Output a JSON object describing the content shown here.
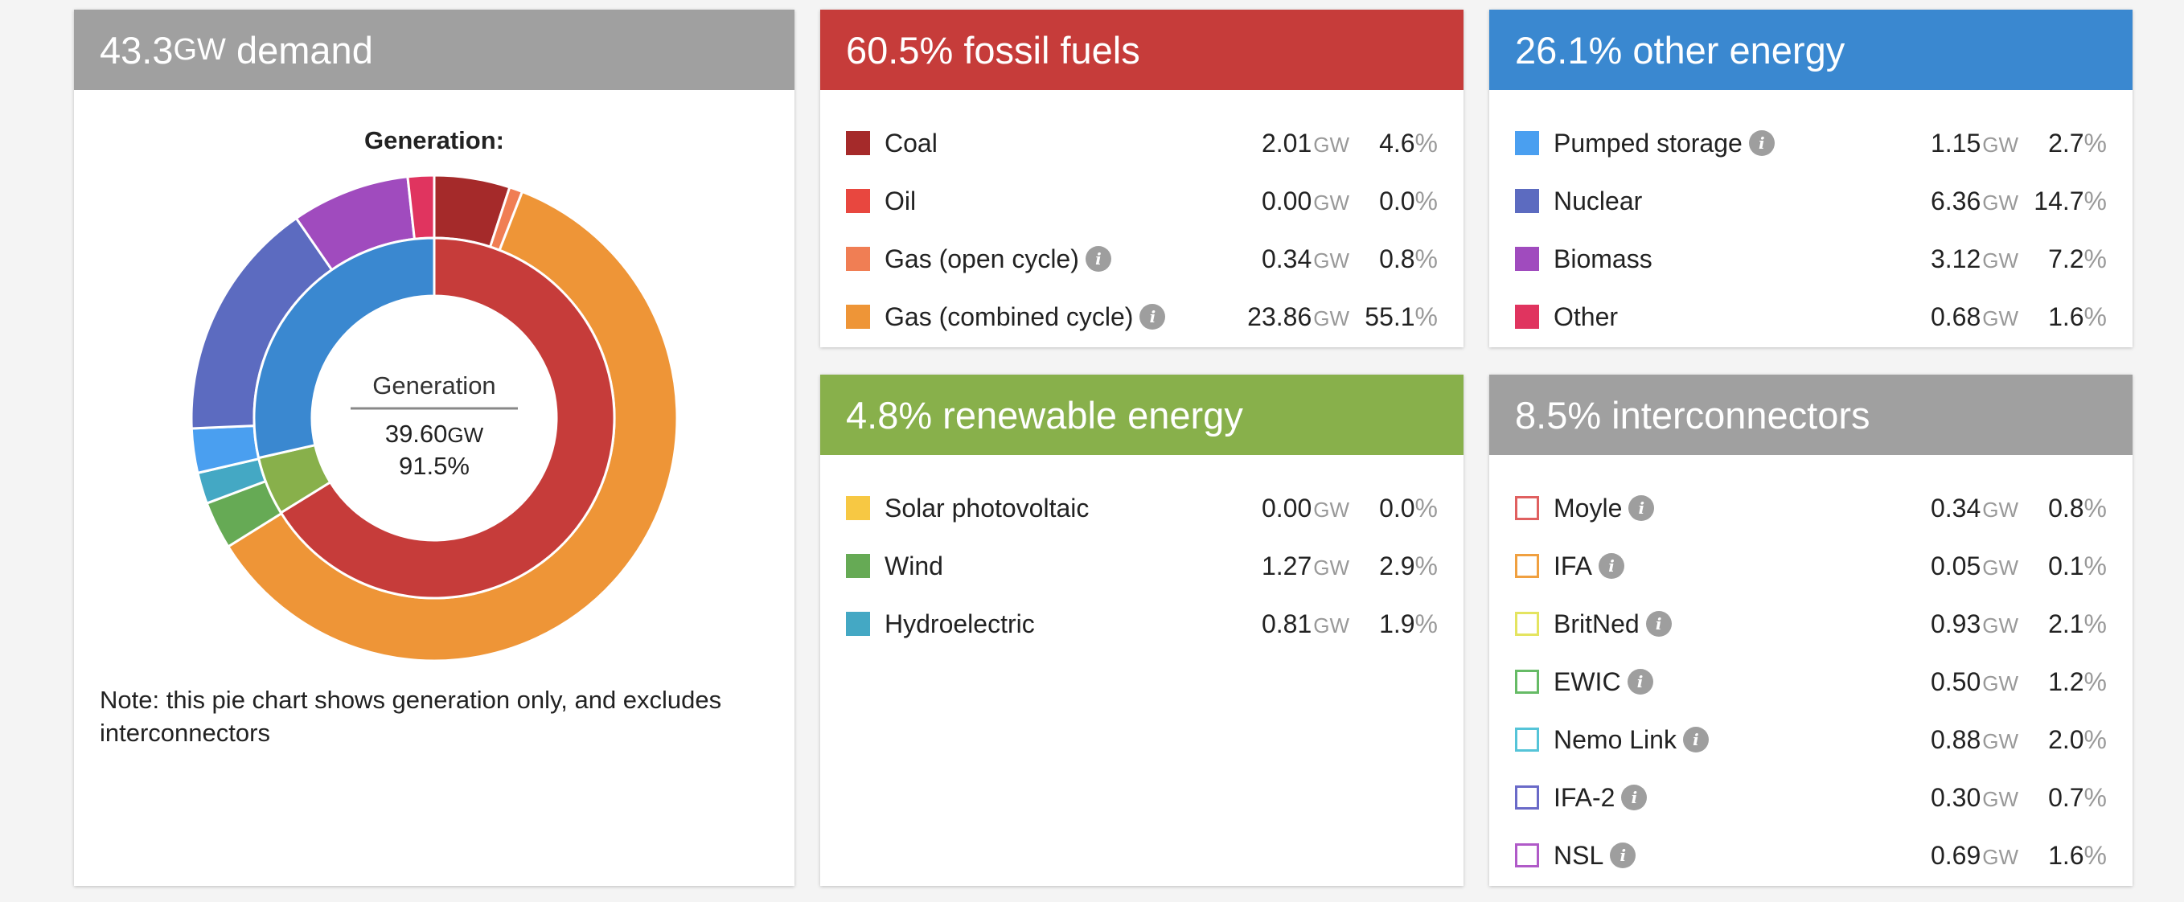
{
  "demand_card": {
    "value": "43.3",
    "unit": "GW",
    "label": "demand",
    "chart_title": "Generation:",
    "center_label": "Generation",
    "center_value": "39.60",
    "center_unit": "GW",
    "center_pct": "91.5%",
    "note": "Note: this pie chart shows generation only, and excludes interconnectors"
  },
  "cards": {
    "fossil": {
      "title": "60.5% fossil fuels",
      "color": "#c63c3a",
      "items": [
        {
          "name": "Coal",
          "value": "2.01",
          "unit": "GW",
          "pct": "4.6",
          "color": "#a52a2a",
          "info": false
        },
        {
          "name": "Oil",
          "value": "0.00",
          "unit": "GW",
          "pct": "0.0",
          "color": "#e8473f",
          "info": false
        },
        {
          "name": "Gas (open cycle)",
          "value": "0.34",
          "unit": "GW",
          "pct": "0.8",
          "color": "#f07e54",
          "info": true
        },
        {
          "name": "Gas (combined cycle)",
          "value": "23.86",
          "unit": "GW",
          "pct": "55.1",
          "color": "#ee9537",
          "info": true
        }
      ]
    },
    "other": {
      "title": "26.1% other energy",
      "color": "#3a88d0",
      "items": [
        {
          "name": "Pumped storage",
          "value": "1.15",
          "unit": "GW",
          "pct": "2.7",
          "color": "#4a9ff0",
          "info": true
        },
        {
          "name": "Nuclear",
          "value": "6.36",
          "unit": "GW",
          "pct": "14.7",
          "color": "#5c6bc0",
          "info": false
        },
        {
          "name": "Biomass",
          "value": "3.12",
          "unit": "GW",
          "pct": "7.2",
          "color": "#a04bbe",
          "info": false
        },
        {
          "name": "Other",
          "value": "0.68",
          "unit": "GW",
          "pct": "1.6",
          "color": "#e0345f",
          "info": false
        }
      ]
    },
    "renewable": {
      "title": "4.8% renewable energy",
      "color": "#88b04b",
      "items": [
        {
          "name": "Solar photovoltaic",
          "value": "0.00",
          "unit": "GW",
          "pct": "0.0",
          "color": "#f7c843",
          "info": false
        },
        {
          "name": "Wind",
          "value": "1.27",
          "unit": "GW",
          "pct": "2.9",
          "color": "#66aa55",
          "info": false
        },
        {
          "name": "Hydroelectric",
          "value": "0.81",
          "unit": "GW",
          "pct": "1.9",
          "color": "#44a8c4",
          "info": false
        }
      ]
    },
    "interconnectors": {
      "title": "8.5% interconnectors",
      "color": "#a0a0a0",
      "items": [
        {
          "name": "Moyle",
          "value": "0.34",
          "unit": "GW",
          "pct": "0.8",
          "color": "#e06060",
          "info": true
        },
        {
          "name": "IFA",
          "value": "0.05",
          "unit": "GW",
          "pct": "0.1",
          "color": "#f0a040",
          "info": true
        },
        {
          "name": "BritNed",
          "value": "0.93",
          "unit": "GW",
          "pct": "2.1",
          "color": "#e4e460",
          "info": true
        },
        {
          "name": "EWIC",
          "value": "0.50",
          "unit": "GW",
          "pct": "1.2",
          "color": "#66bb66",
          "info": true
        },
        {
          "name": "Nemo Link",
          "value": "0.88",
          "unit": "GW",
          "pct": "2.0",
          "color": "#55c4d8",
          "info": true
        },
        {
          "name": "IFA-2",
          "value": "0.30",
          "unit": "GW",
          "pct": "0.7",
          "color": "#6a6ac8",
          "info": true
        },
        {
          "name": "NSL",
          "value": "0.69",
          "unit": "GW",
          "pct": "1.6",
          "color": "#b05ac8",
          "info": true
        }
      ]
    }
  },
  "chart_data": {
    "type": "pie",
    "title": "Generation:",
    "inner_ring": [
      {
        "label": "Fossil",
        "value": 60.5,
        "color": "#c63c3a"
      },
      {
        "label": "Renewable",
        "value": 4.8,
        "color": "#88b04b"
      },
      {
        "label": "Other",
        "value": 26.1,
        "color": "#3a88d0"
      }
    ],
    "outer_ring": [
      {
        "label": "Coal",
        "value": 4.6,
        "color": "#a52a2a"
      },
      {
        "label": "Oil",
        "value": 0.0,
        "color": "#e8473f"
      },
      {
        "label": "Gas (open cycle)",
        "value": 0.8,
        "color": "#f07e54"
      },
      {
        "label": "Gas (combined cycle)",
        "value": 55.1,
        "color": "#ee9537"
      },
      {
        "label": "Solar photovoltaic",
        "value": 0.0,
        "color": "#f7c843"
      },
      {
        "label": "Wind",
        "value": 2.9,
        "color": "#66aa55"
      },
      {
        "label": "Hydroelectric",
        "value": 1.9,
        "color": "#44a8c4"
      },
      {
        "label": "Pumped storage",
        "value": 2.7,
        "color": "#4a9ff0"
      },
      {
        "label": "Nuclear",
        "value": 14.7,
        "color": "#5c6bc0"
      },
      {
        "label": "Biomass",
        "value": 7.2,
        "color": "#a04bbe"
      },
      {
        "label": "Other",
        "value": 1.6,
        "color": "#e0345f"
      }
    ]
  }
}
